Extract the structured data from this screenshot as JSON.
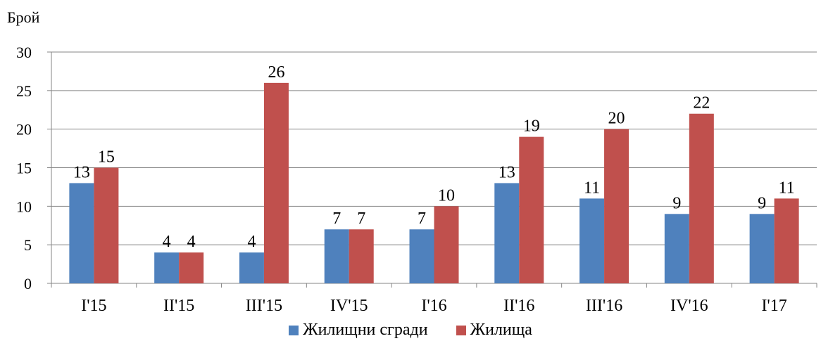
{
  "chart_data": {
    "type": "bar",
    "ylabel": "Брой",
    "xlabel": "",
    "ylim": [
      0,
      30
    ],
    "yticks": [
      0,
      5,
      10,
      15,
      20,
      25,
      30
    ],
    "categories": [
      "I'15",
      "II'15",
      "III'15",
      "IV'15",
      "I'16",
      "II'16",
      "III'16",
      "IV'16",
      "I'17"
    ],
    "series": [
      {
        "name": "Жилищни сгради",
        "color": "#4F81BD",
        "values": [
          13,
          4,
          4,
          7,
          7,
          13,
          11,
          9,
          9
        ]
      },
      {
        "name": "Жилища",
        "color": "#C0504D",
        "values": [
          15,
          4,
          26,
          7,
          10,
          19,
          20,
          22,
          11
        ]
      }
    ],
    "grid": true,
    "legend_position": "bottom",
    "data_labels": true
  }
}
